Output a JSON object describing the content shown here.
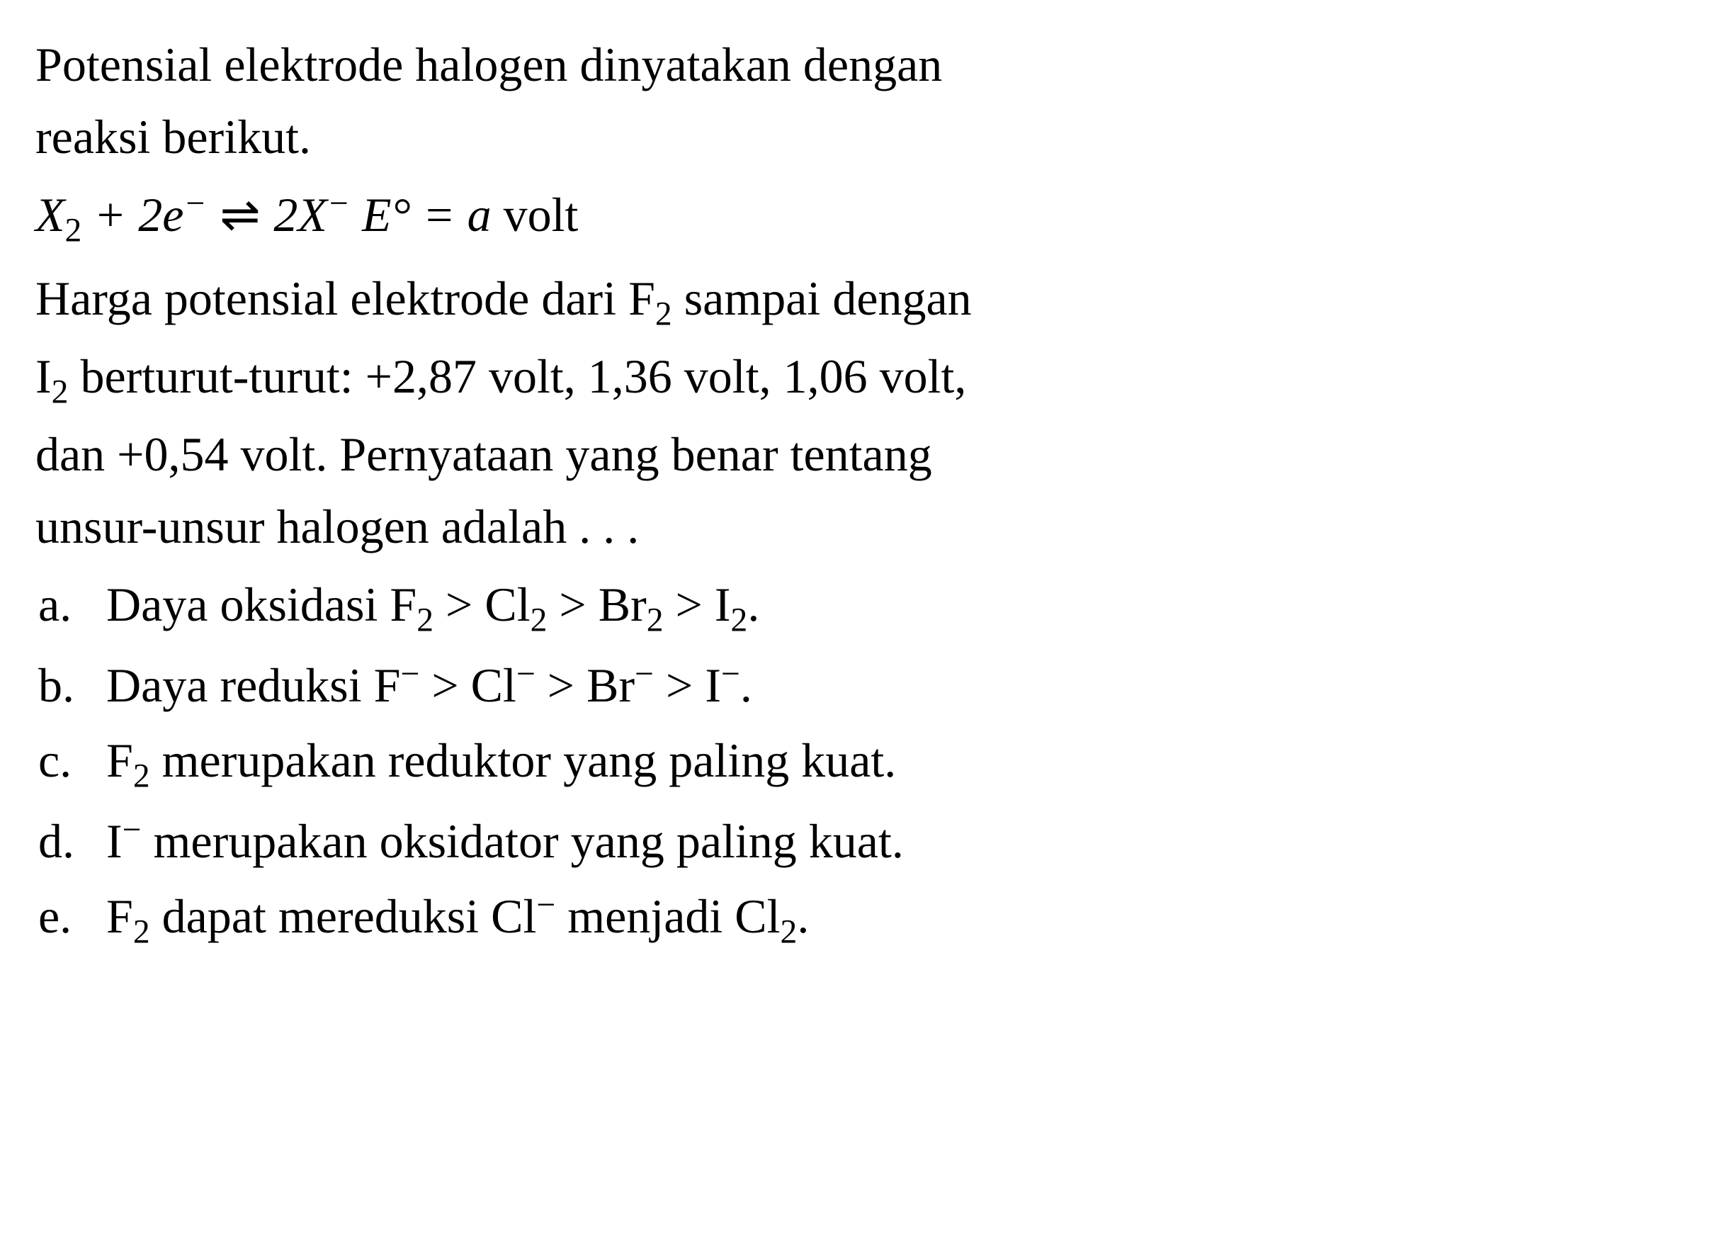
{
  "question": {
    "intro_line1": "Potensial elektrode halogen dinyatakan dengan",
    "intro_line2": "reaksi berikut.",
    "equation": {
      "X": "X",
      "sub2_a": "2",
      "plus": " + 2",
      "e": "e",
      "minus_sup": "−",
      "arrow": " ⇌ ",
      "two": "2",
      "X2": "X",
      "sup_minus2": "−",
      "spacer": "    ",
      "E": "E",
      "degree": "°",
      "equals": " = ",
      "a": "a",
      "volt": " volt"
    },
    "body_line1": "Harga potensial elektrode dari F",
    "body_sub1": "2",
    "body_line1b": " sampai dengan",
    "body_line2": "I",
    "body_sub2": "2",
    "body_line2b": " berturut-turut: +2,87 volt, 1,36 volt, 1,06 volt,",
    "body_line3": "dan +0,54 volt. Pernyataan yang benar tentang",
    "body_line4": "unsur-unsur halogen adalah . . .",
    "options": [
      {
        "label": "a.",
        "text_parts": {
          "part1": "Daya oksidasi F",
          "sub1": "2",
          "part2": " > Cl",
          "sub2": "2",
          "part3": " > Br",
          "sub3": "2",
          "part4": " > I",
          "sub4": "2",
          "part5": "."
        }
      },
      {
        "label": "b.",
        "text_parts": {
          "part1": "Daya reduksi F",
          "sup1": "−",
          "part2": " > Cl",
          "sup2": "−",
          "part3": " > Br",
          "sup3": "−",
          "part4": " > I",
          "sup4": "−",
          "part5": "."
        }
      },
      {
        "label": "c.",
        "text_parts": {
          "part1": "F",
          "sub1": "2",
          "part2": " merupakan reduktor yang paling kuat."
        }
      },
      {
        "label": "d.",
        "text_parts": {
          "part1": "I",
          "sup1": "−",
          "part2": " merupakan oksidator yang paling kuat."
        }
      },
      {
        "label": "e.",
        "text_parts": {
          "part1": "F",
          "sub1": "2",
          "part2": " dapat mereduksi Cl",
          "sup1": "−",
          "part3": " menjadi Cl",
          "sub2": "2",
          "part4": "."
        }
      }
    ]
  },
  "styling": {
    "font_family": "Times New Roman",
    "font_size_pt": 51,
    "text_color": "#000000",
    "background_color": "#ffffff",
    "line_height": 1.5
  }
}
